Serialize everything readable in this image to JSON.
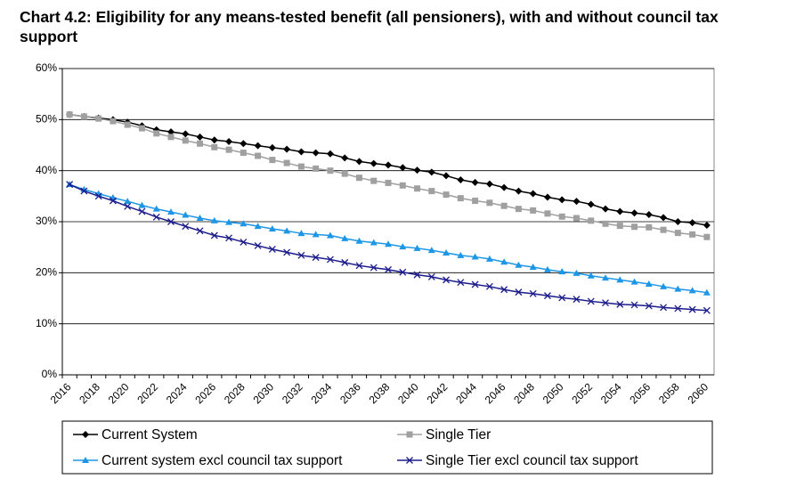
{
  "chart_data": {
    "type": "line",
    "title": "Chart 4.2: Eligibility for any means-tested benefit (all pensioners), with and without council tax support",
    "categories": [
      "2016",
      null,
      "2018",
      null,
      "2020",
      null,
      "2022",
      null,
      "2024",
      null,
      "2026",
      null,
      "2028",
      null,
      "2030",
      null,
      "2032",
      null,
      "2034",
      null,
      "2036",
      null,
      "2038",
      null,
      "2040",
      null,
      "2042",
      null,
      "2044",
      null,
      "2046",
      null,
      "2048",
      null,
      "2050",
      null,
      "2052",
      null,
      "2054",
      null,
      "2056",
      null,
      "2058",
      null,
      "2060"
    ],
    "ylim": [
      0,
      60
    ],
    "yticks": [
      {
        "value": 0,
        "label": "0%"
      },
      {
        "value": 10,
        "label": "10%"
      },
      {
        "value": 20,
        "label": "20%"
      },
      {
        "value": 30,
        "label": "30%"
      },
      {
        "value": 40,
        "label": "40%"
      },
      {
        "value": 50,
        "label": "50%"
      },
      {
        "value": 60,
        "label": "60%"
      }
    ],
    "grid": true,
    "legend": "bottom",
    "series": [
      {
        "name": "Current System",
        "color": "#000000",
        "marker": "diamond",
        "values": [
          51,
          50.6,
          50.3,
          50,
          49.5,
          48.8,
          48,
          47.6,
          47.2,
          46.6,
          46,
          45.7,
          45.3,
          44.9,
          44.5,
          44.2,
          43.7,
          43.5,
          43.3,
          42.5,
          41.8,
          41.4,
          41.1,
          40.6,
          40.1,
          39.7,
          39,
          38.2,
          37.7,
          37.4,
          36.7,
          36,
          35.5,
          34.8,
          34.3,
          34,
          33.4,
          32.5,
          32,
          31.7,
          31.4,
          30.8,
          30,
          29.8,
          29.3
        ]
      },
      {
        "name": "Single Tier",
        "color": "#a0a0a0",
        "marker": "square",
        "values": [
          51,
          50.6,
          50.2,
          49.7,
          49,
          48.3,
          47.3,
          46.6,
          45.9,
          45.3,
          44.6,
          44.1,
          43.5,
          42.9,
          42.1,
          41.5,
          40.8,
          40.4,
          40,
          39.4,
          38.6,
          38,
          37.6,
          37.1,
          36.5,
          36,
          35.3,
          34.6,
          34.1,
          33.7,
          33.1,
          32.5,
          32.2,
          31.6,
          31,
          30.7,
          30.2,
          29.6,
          29.2,
          29,
          28.9,
          28.4,
          27.8,
          27.5,
          27
        ]
      },
      {
        "name": "Current system excl council tax support",
        "color": "#1e96e6",
        "marker": "triangle",
        "values": [
          37.3,
          36.3,
          35.5,
          34.7,
          34,
          33.2,
          32.5,
          31.9,
          31.3,
          30.7,
          30.2,
          29.9,
          29.6,
          29.1,
          28.6,
          28.2,
          27.7,
          27.5,
          27.3,
          26.7,
          26.2,
          25.9,
          25.6,
          25.1,
          24.8,
          24.4,
          23.9,
          23.4,
          23.1,
          22.7,
          22.1,
          21.5,
          21.1,
          20.6,
          20.2,
          19.9,
          19.4,
          19,
          18.6,
          18.2,
          17.8,
          17.3,
          16.8,
          16.5,
          16.1
        ]
      },
      {
        "name": "Single Tier excl council tax support",
        "color": "#1c1c8c",
        "marker": "x",
        "values": [
          37.3,
          36,
          35,
          34.1,
          33,
          32,
          30.9,
          30,
          29.1,
          28.2,
          27.3,
          26.8,
          26,
          25.3,
          24.6,
          24,
          23.4,
          23,
          22.6,
          22,
          21.4,
          21,
          20.6,
          20.1,
          19.6,
          19.2,
          18.6,
          18.1,
          17.7,
          17.3,
          16.7,
          16.2,
          15.9,
          15.5,
          15.1,
          14.8,
          14.4,
          14.1,
          13.8,
          13.7,
          13.5,
          13.2,
          13,
          12.8,
          12.6
        ]
      }
    ]
  }
}
